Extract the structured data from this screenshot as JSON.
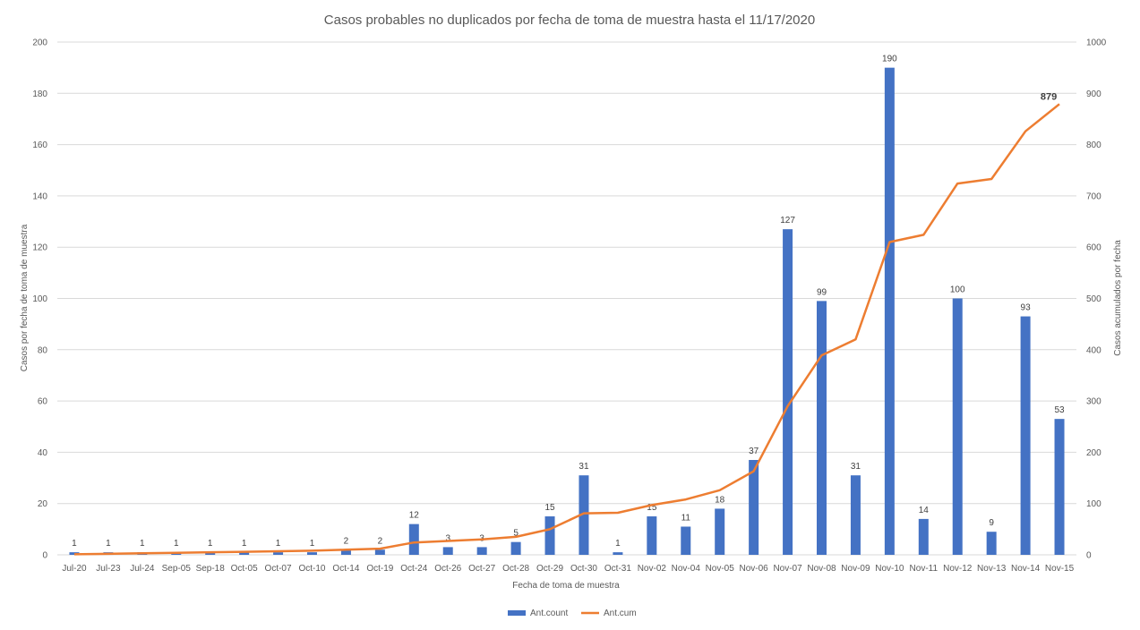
{
  "chart_data": {
    "type": "bar",
    "title": "Casos probables no duplicados por fecha de toma de muestra hasta el 11/17/2020",
    "xlabel": "Fecha de toma de muestra",
    "ylabel": "Casos por fecha de toma de muestra",
    "y2label": "Casos acumulados por fecha",
    "ylim": [
      0,
      200
    ],
    "y2lim": [
      0,
      1000
    ],
    "yticks": [
      0,
      20,
      40,
      60,
      80,
      100,
      120,
      140,
      160,
      180,
      200
    ],
    "y2ticks": [
      0,
      100,
      200,
      300,
      400,
      500,
      600,
      700,
      800,
      900,
      1000
    ],
    "grid": true,
    "legend_position": "bottom",
    "categories": [
      "Jul-20",
      "Jul-23",
      "Jul-24",
      "Sep-05",
      "Sep-18",
      "Oct-05",
      "Oct-07",
      "Oct-10",
      "Oct-14",
      "Oct-19",
      "Oct-24",
      "Oct-26",
      "Oct-27",
      "Oct-28",
      "Oct-29",
      "Oct-30",
      "Oct-31",
      "Nov-02",
      "Nov-04",
      "Nov-05",
      "Nov-06",
      "Nov-07",
      "Nov-08",
      "Nov-09",
      "Nov-10",
      "Nov-11",
      "Nov-12",
      "Nov-13",
      "Nov-14",
      "Nov-15"
    ],
    "series": [
      {
        "name": "Ant.count",
        "type": "bar",
        "axis": "left",
        "color": "#4472c4",
        "values": [
          1,
          1,
          1,
          1,
          1,
          1,
          1,
          1,
          2,
          2,
          12,
          3,
          3,
          5,
          15,
          31,
          1,
          15,
          11,
          18,
          37,
          127,
          99,
          31,
          190,
          14,
          100,
          9,
          93,
          53
        ]
      },
      {
        "name": "Ant.cum",
        "type": "line",
        "axis": "right",
        "color": "#ed7d31",
        "values": [
          1,
          2,
          3,
          4,
          5,
          6,
          7,
          8,
          10,
          12,
          24,
          27,
          30,
          35,
          50,
          81,
          82,
          97,
          108,
          126,
          163,
          290,
          389,
          420,
          610,
          624,
          724,
          733,
          826,
          879
        ],
        "last_label": "879"
      }
    ]
  }
}
